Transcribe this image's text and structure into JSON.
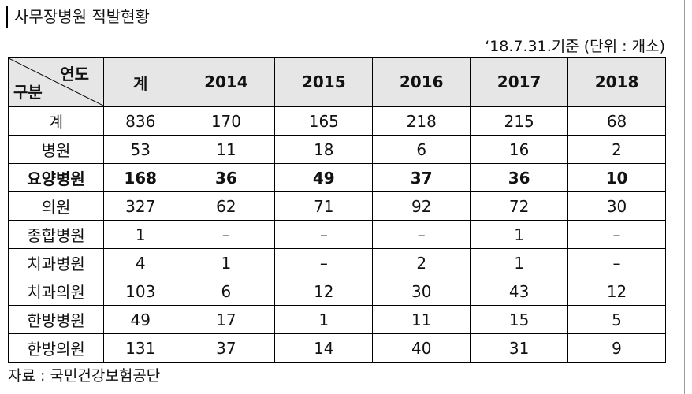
{
  "header": {
    "title": "사무장병원 적발현황",
    "note": "‘18.7.31.기준  (단위 : 개소)"
  },
  "table": {
    "corner": {
      "top": "연도",
      "bottom": "구분"
    },
    "columns": [
      "계",
      "2014",
      "2015",
      "2016",
      "2017",
      "2018"
    ],
    "rows": [
      [
        "계",
        836,
        170,
        165,
        218,
        215,
        68
      ],
      [
        "병원",
        53,
        11,
        18,
        6,
        16,
        2
      ],
      [
        "요양병원",
        168,
        36,
        49,
        37,
        36,
        10
      ],
      [
        "의원",
        327,
        62,
        71,
        92,
        72,
        30
      ],
      [
        "종합병원",
        1,
        "–",
        "–",
        "–",
        1,
        "–"
      ],
      [
        "치과병원",
        4,
        1,
        "–",
        2,
        1,
        "–"
      ],
      [
        "치과의원",
        103,
        6,
        12,
        30,
        43,
        12
      ],
      [
        "한방병원",
        49,
        17,
        1,
        11,
        15,
        5
      ],
      [
        "한방의원",
        131,
        37,
        14,
        40,
        31,
        9
      ]
    ]
  },
  "footer": {
    "source": "자료 : 국민건강보험공단"
  }
}
